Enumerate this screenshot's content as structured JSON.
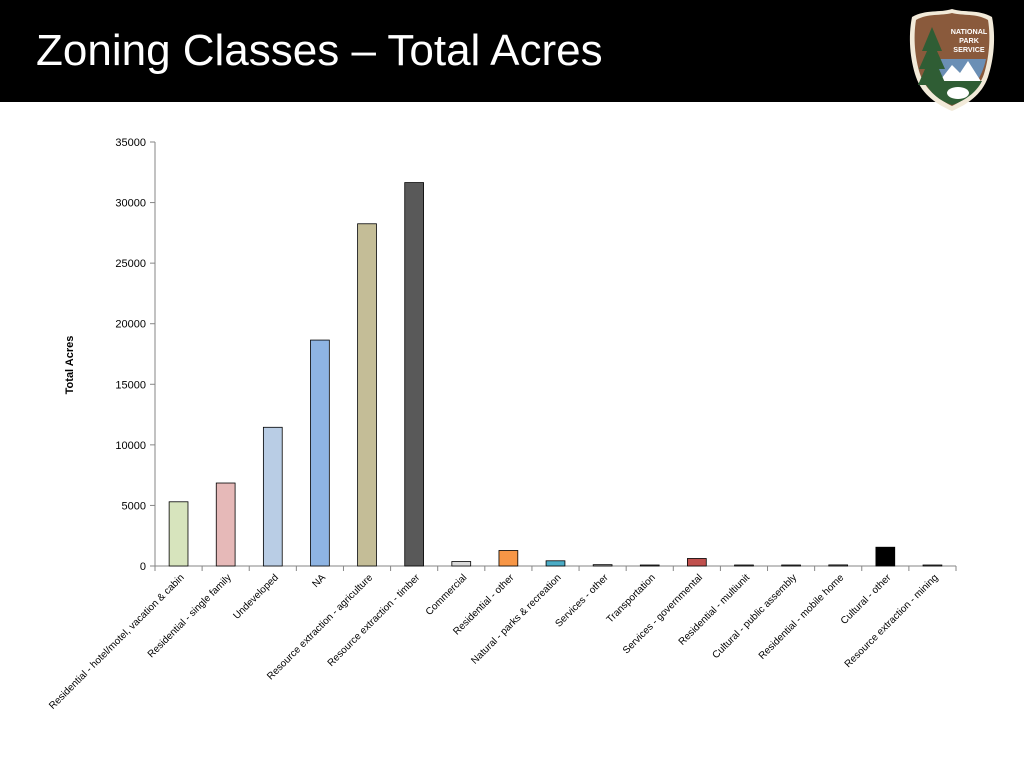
{
  "slide": {
    "title": "Zoning Classes – Total Acres"
  },
  "logo": {
    "text_lines": [
      "NATIONAL",
      "PARK",
      "SERVICE"
    ],
    "colors": {
      "shield": "#8a5a3c",
      "border": "#f2ead9",
      "tree": "#2f5d34",
      "mountain": "#ffffff",
      "sky": "#6b8fb5"
    }
  },
  "chart_data": {
    "type": "bar",
    "title": "",
    "xlabel": "",
    "ylabel": "Total Acres",
    "ylim": [
      0,
      35000
    ],
    "yticks": [
      0,
      5000,
      10000,
      15000,
      20000,
      25000,
      30000,
      35000
    ],
    "grid": false,
    "legend": "none",
    "categories": [
      "Residential - hotel/motel, vacation & cabin",
      "Residential - single family",
      "Undeveloped",
      "NA",
      "Resource extraction - agriculture",
      "Resource extraction - timber",
      "Commercial",
      "Residential - other",
      "Natural - parks & recreation",
      "Services - other",
      "Transportation",
      "Services - governmental",
      "Residential - multiunit",
      "Cultural - public assembly",
      "Residential - mobile home",
      "Cultural - other",
      "Resource extraction - mining"
    ],
    "values": [
      5300,
      6850,
      11450,
      18650,
      28250,
      31650,
      370,
      1280,
      430,
      110,
      40,
      620,
      60,
      70,
      90,
      1550,
      50
    ],
    "colors": [
      "#d7e4bd",
      "#e6b9b8",
      "#b9cde5",
      "#8eb4e3",
      "#c4bd97",
      "#595959",
      "#d9d9d9",
      "#f79646",
      "#4bacc6",
      "#a6a6a6",
      "#7f7f7f",
      "#c0504d",
      "#8c8c8c",
      "#8c8c8c",
      "#8c8c8c",
      "#000000",
      "#8c8c8c"
    ]
  }
}
